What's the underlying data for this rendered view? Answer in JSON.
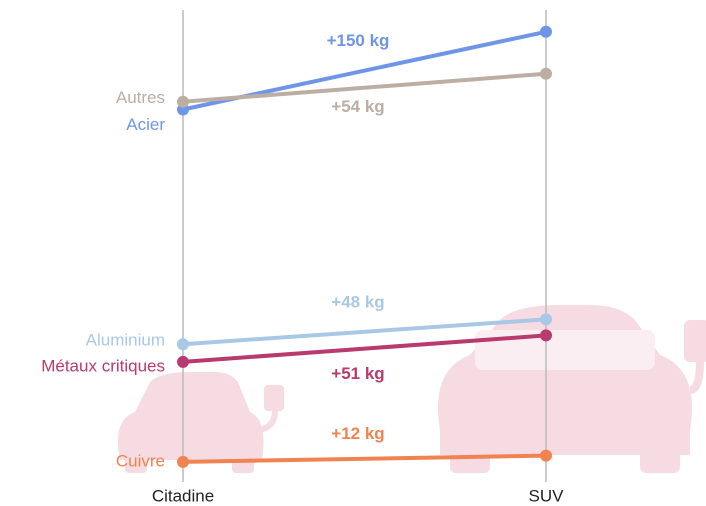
{
  "chart_data": {
    "type": "slope",
    "categories": [
      "Citadine",
      "SUV"
    ],
    "ylim": [
      0,
      880
    ],
    "series": [
      {
        "name": "Acier",
        "color": "#6f95e8",
        "values": [
          715,
          865
        ],
        "change": "+150 kg"
      },
      {
        "name": "Autres",
        "color": "#bcaea2",
        "values": [
          730,
          784
        ],
        "change": "+54 kg"
      },
      {
        "name": "Aluminium",
        "color": "#a8c8e6",
        "values": [
          262,
          310
        ],
        "change": "+48 kg"
      },
      {
        "name": "Métaux critiques",
        "color": "#b83a6e",
        "values": [
          228,
          279
        ],
        "change": "+51 kg"
      },
      {
        "name": "Cuivre",
        "color": "#f0834f",
        "values": [
          35,
          47
        ],
        "change": "+12 kg"
      }
    ]
  }
}
